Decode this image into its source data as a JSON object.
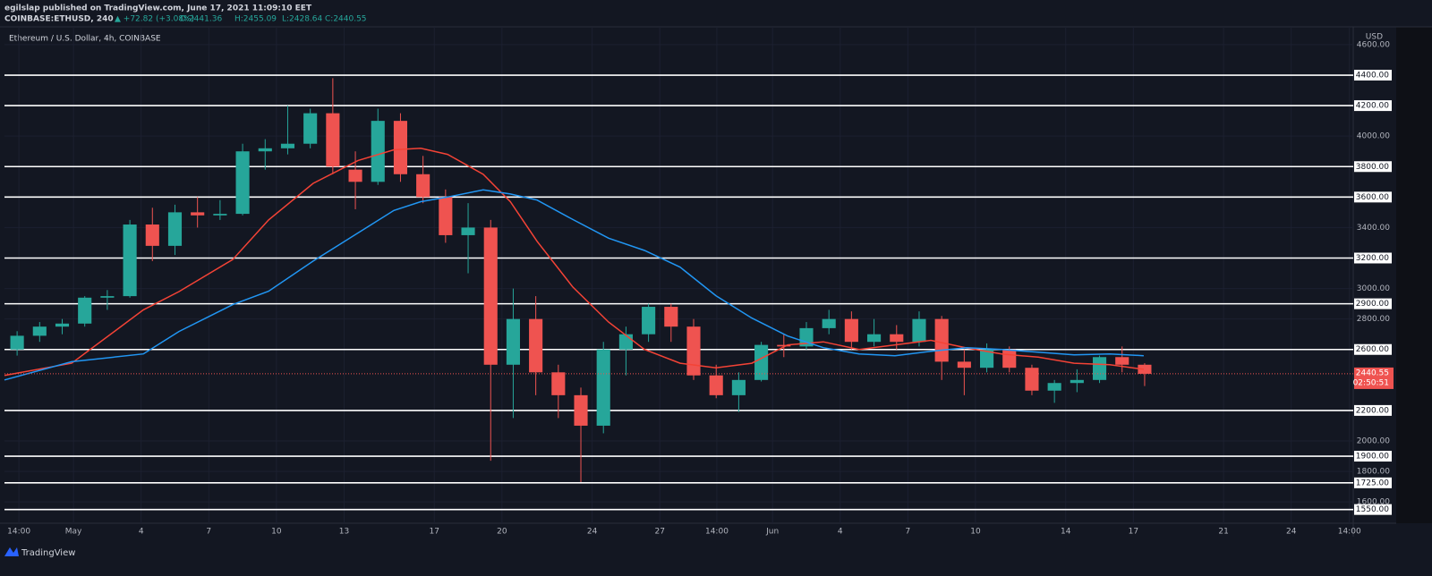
{
  "header": {
    "publisher": "egilslap published on TradingView.com, June 17, 2021 11:09:10 EET",
    "symbol": "COINBASE:ETHUSD, 240",
    "change": "▲ +72.82 (+3.08%)",
    "open": "O:2441.36",
    "high": "H:2455.09",
    "low": "L:2428.64",
    "close": "C:2440.55"
  },
  "footer": {
    "brand": "TradingView"
  },
  "chart_data": {
    "type": "candlestick",
    "title": "Ethereum / U.S. Dollar, 4h, COINBASE",
    "y_unit": "USD",
    "up_color": "#26a69a",
    "down_color": "#ef5350",
    "x": [
      -2,
      -1,
      0,
      1,
      2,
      3,
      4,
      5,
      6,
      7,
      8,
      9,
      10,
      11,
      12,
      13,
      14,
      15,
      16,
      17,
      18,
      19,
      20,
      21,
      22,
      23,
      24,
      25,
      26,
      27,
      28,
      29,
      30,
      31,
      32,
      33,
      34,
      35,
      36,
      37,
      38,
      39,
      40,
      41,
      42,
      43,
      44,
      45,
      46,
      47,
      48
    ],
    "open": [
      2600,
      2690,
      2750,
      2770,
      2940,
      2950,
      3420,
      3280,
      3500,
      3480,
      3490,
      3900,
      3920,
      3950,
      4150,
      3780,
      3700,
      4100,
      3750,
      3600,
      3350,
      3400,
      2500,
      2800,
      2450,
      2300,
      2100,
      2600,
      2700,
      2880,
      2750,
      2430,
      2300,
      2400,
      2630,
      2620,
      2740,
      2800,
      2650,
      2700,
      2650,
      2800,
      2520,
      2480,
      2600,
      2480,
      2330,
      2380,
      2400,
      2550,
      2500
    ],
    "high": [
      2720,
      2780,
      2800,
      2950,
      2990,
      3450,
      3530,
      3550,
      3600,
      3580,
      3950,
      3980,
      4200,
      4180,
      4380,
      3900,
      4180,
      4150,
      3870,
      3650,
      3560,
      3450,
      3000,
      2950,
      2500,
      2350,
      2650,
      2750,
      2900,
      2900,
      2800,
      2500,
      2450,
      2650,
      2700,
      2780,
      2860,
      2850,
      2800,
      2760,
      2850,
      2820,
      2600,
      2640,
      2620,
      2500,
      2400,
      2470,
      2560,
      2620,
      2510
    ],
    "low": [
      2560,
      2650,
      2700,
      2750,
      2860,
      2940,
      3180,
      3220,
      3400,
      3450,
      3480,
      3780,
      3880,
      3920,
      3750,
      3520,
      3680,
      3700,
      3560,
      3300,
      3100,
      1870,
      2150,
      2300,
      2150,
      1730,
      2050,
      2430,
      2650,
      2650,
      2400,
      2280,
      2190,
      2390,
      2550,
      2600,
      2700,
      2600,
      2620,
      2600,
      2620,
      2400,
      2300,
      2450,
      2450,
      2300,
      2250,
      2320,
      2380,
      2450,
      2360
    ],
    "close": [
      2690,
      2750,
      2770,
      2940,
      2950,
      3420,
      3280,
      3500,
      3480,
      3490,
      3900,
      3920,
      3950,
      4150,
      3800,
      3700,
      4100,
      3750,
      3600,
      3350,
      3400,
      2500,
      2800,
      2450,
      2300,
      2100,
      2600,
      2700,
      2880,
      2750,
      2430,
      2300,
      2400,
      2630,
      2620,
      2740,
      2800,
      2650,
      2700,
      2650,
      2800,
      2520,
      2480,
      2600,
      2480,
      2330,
      2380,
      2400,
      2550,
      2500,
      2440.55
    ],
    "lines": [
      {
        "color": "#f44336",
        "x": [
          -2.06,
          0.92,
          4.1,
          5.68,
          8.06,
          9.65,
          11.63,
          13.62,
          15.21,
          16.4,
          17.59,
          19.17,
          20.37,
          21.56,
          23.14,
          24.73,
          26.32,
          27.9,
          29.49,
          31.08,
          32.67,
          34.25,
          35.84,
          37.43,
          39.02,
          40.6,
          42.19,
          43.78,
          45.37,
          46.95,
          48.46
        ],
        "values": [
          2430,
          2510,
          2860,
          2980,
          3190,
          3450,
          3690,
          3840,
          3910,
          3920,
          3880,
          3750,
          3570,
          3310,
          3010,
          2780,
          2600,
          2510,
          2480,
          2510,
          2630,
          2650,
          2600,
          2630,
          2660,
          2610,
          2570,
          2550,
          2510,
          2500,
          2470
        ]
      },
      {
        "color": "#2196f3",
        "x": [
          -2.06,
          0.92,
          4.1,
          5.68,
          8.06,
          9.65,
          11.63,
          13.62,
          15.21,
          16.4,
          17.59,
          19.17,
          20.37,
          21.56,
          23.14,
          24.73,
          26.32,
          27.9,
          29.49,
          31.08,
          32.67,
          34.25,
          35.84,
          37.43,
          39.02,
          40.6,
          42.19,
          43.78,
          45.37,
          46.95,
          48.46
        ],
        "values": [
          2400,
          2520,
          2571,
          2718,
          2894,
          2982,
          3180,
          3365,
          3512,
          3570,
          3600,
          3647,
          3620,
          3580,
          3453,
          3330,
          3250,
          3140,
          2953,
          2806,
          2688,
          2612,
          2571,
          2559,
          2588,
          2612,
          2600,
          2582,
          2565,
          2571,
          2559
        ]
      }
    ],
    "levels": [
      {
        "value": 4400,
        "label": "4400.00"
      },
      {
        "value": 4200,
        "label": "4200.00"
      },
      {
        "value": 3800,
        "label": "3800.00"
      },
      {
        "value": 3600,
        "label": "3600.00"
      },
      {
        "value": 3200,
        "label": "3200.00"
      },
      {
        "value": 2900,
        "label": "2900.00"
      },
      {
        "value": 2600,
        "label": "2600.00"
      },
      {
        "value": 2200,
        "label": "2200.00"
      },
      {
        "value": 1900,
        "label": "1900.00"
      },
      {
        "value": 1725,
        "label": "1725.00"
      },
      {
        "value": 1550,
        "label": "1550.00"
      }
    ],
    "last_price": 2440.55,
    "countdown": "02:50:51",
    "xlim": [
      -2.06,
      57.75
    ],
    "ylim": [
      1460,
      4717
    ],
    "xticks": [
      {
        "value": -1.42,
        "label": "14:00"
      },
      {
        "value": 1,
        "label": "May"
      },
      4,
      7,
      10,
      13,
      17,
      20,
      24,
      27,
      {
        "value": 29.53,
        "label": "14:00"
      },
      {
        "value": 32,
        "label": "Jun"
      },
      {
        "value": 35,
        "label": "4"
      },
      {
        "value": 38,
        "label": "7"
      },
      {
        "value": 41,
        "label": "10"
      },
      {
        "value": 45,
        "label": "14"
      },
      {
        "value": 48,
        "label": "17"
      },
      {
        "value": 52,
        "label": "21"
      },
      {
        "value": 55,
        "label": "24"
      },
      {
        "value": 57.58,
        "label": "14:00"
      }
    ],
    "yticks": [
      {
        "value": 4600,
        "label": "4600.00"
      },
      {
        "value": 4000,
        "label": "4000.00"
      },
      {
        "value": 3400,
        "label": "3400.00"
      },
      {
        "value": 3000,
        "label": "3000.00"
      },
      {
        "value": 2800,
        "label": "2800.00"
      },
      {
        "value": 2000,
        "label": "2000.00"
      },
      {
        "value": 1800,
        "label": "1800.00"
      },
      {
        "value": 1600,
        "label": "1600.00"
      }
    ],
    "grid": true
  }
}
